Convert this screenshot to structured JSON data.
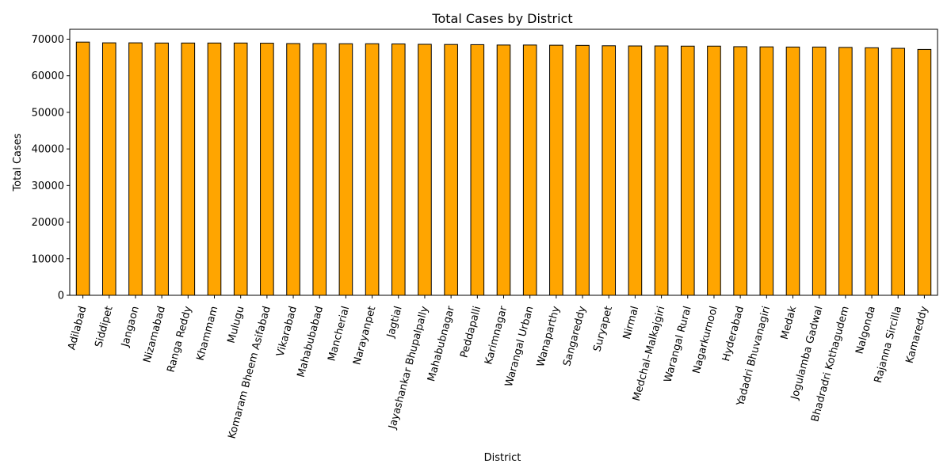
{
  "chart_data": {
    "type": "bar",
    "title": "Total Cases by District",
    "xlabel": "District",
    "ylabel": "Total Cases",
    "categories": [
      "Adilabad",
      "Siddipet",
      "Jangaon",
      "Nizamabad",
      "Ranga Reddy",
      "Khammam",
      "Mulugu",
      "Komaram Bheem Asifabad",
      "Vikarabad",
      "Mahabubabad",
      "Mancherial",
      "Narayanpet",
      "Jagtial",
      "Jayashankar Bhupalpally",
      "Mahabubnagar",
      "Peddapalli",
      "Karimnagar",
      "Warangal Urban",
      "Wanaparthy",
      "Sangareddy",
      "Suryapet",
      "Nirmal",
      "Medchal–Malkajgiri",
      "Warangal Rural",
      "Nagarkurnool",
      "Hyderabad",
      "Yadadri Bhuvanagiri",
      "Medak",
      "Jogulamba Gadwal",
      "Bhadradri Kothagudem",
      "Nalgonda",
      "Rajanna Sircilla",
      "Kamareddy"
    ],
    "values": [
      69200,
      69000,
      69000,
      68950,
      68950,
      68950,
      68950,
      68900,
      68800,
      68800,
      68750,
      68750,
      68700,
      68600,
      68550,
      68500,
      68400,
      68400,
      68350,
      68300,
      68200,
      68150,
      68150,
      68100,
      68100,
      67950,
      67900,
      67850,
      67850,
      67750,
      67650,
      67500,
      67200
    ],
    "yticks": [
      0,
      10000,
      20000,
      30000,
      40000,
      50000,
      60000,
      70000
    ],
    "ylim": [
      0,
      72700
    ],
    "bar_color": "#FFA500",
    "edge_color": "#000000",
    "grid": false,
    "xtick_rotation": 75
  }
}
